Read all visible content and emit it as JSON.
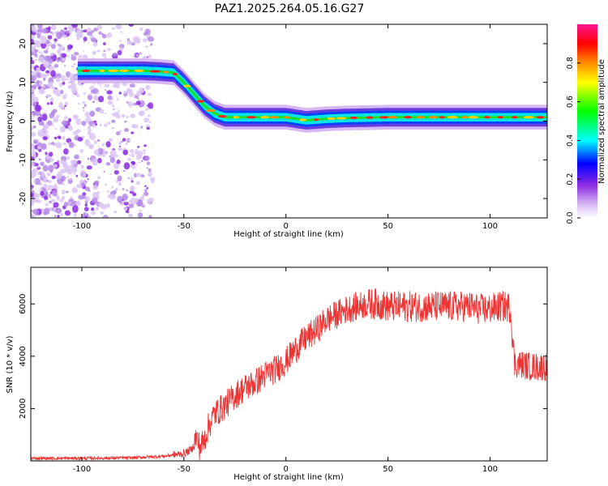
{
  "title": "PAZ1.2025.264.05.16.G27",
  "chart_data": [
    {
      "type": "heatmap",
      "xlabel": "Height of straight line (km)",
      "ylabel": "Frequency (Hz)",
      "xlim": [
        -125,
        128
      ],
      "ylim": [
        -25,
        25
      ],
      "xticks": [
        -100,
        -50,
        0,
        50,
        100
      ],
      "yticks": [
        20,
        10,
        0,
        -10,
        -20
      ],
      "colorbar": {
        "label": "Normalized spectral amplitude",
        "range": [
          0,
          1
        ],
        "ticks": [
          "0.0",
          "0.2",
          "0.4",
          "0.6",
          "0.8"
        ],
        "colors": [
          "#ffffff",
          "#d7b8f3",
          "#8a2be2",
          "#0000ff",
          "#00ffff",
          "#00ff00",
          "#ffff00",
          "#ff8c00",
          "#ff0000",
          "#ff1493"
        ]
      },
      "ridge": {
        "x": [
          -102,
          -90,
          -80,
          -70,
          -62,
          -55,
          -50,
          -45,
          -40,
          -35,
          -30,
          -20,
          -10,
          0,
          10,
          20,
          30,
          40,
          50,
          60,
          70,
          80,
          90,
          100,
          110,
          120,
          128
        ],
        "y": [
          13,
          13,
          13,
          13,
          12.8,
          12.5,
          10,
          7,
          4,
          2,
          1,
          1,
          1,
          1,
          0.2,
          0.6,
          0.8,
          0.9,
          1,
          1,
          1,
          1,
          1,
          1,
          1,
          1,
          1
        ]
      }
    },
    {
      "type": "line",
      "xlabel": "Height of straight line (km)",
      "ylabel": "SNR (10 * v/v)",
      "xlim": [
        -125,
        128
      ],
      "ylim": [
        0,
        7400
      ],
      "xticks": [
        -100,
        -50,
        0,
        50,
        100
      ],
      "yticks": [
        2000,
        4000,
        6000
      ],
      "color": "#ee3333",
      "series": [
        {
          "x": [
            -125,
            -100,
            -75,
            -60,
            -50,
            -46,
            -44,
            -42,
            -40,
            -38,
            -35,
            -30,
            -25,
            -20,
            -15,
            -10,
            -5,
            0,
            5,
            10,
            15,
            20,
            25,
            30,
            35,
            40,
            45,
            50,
            55,
            60,
            65,
            70,
            75,
            80,
            85,
            90,
            95,
            100,
            105,
            108,
            110,
            112,
            115,
            120,
            125,
            128
          ],
          "y": [
            100,
            100,
            120,
            180,
            280,
            450,
            900,
            500,
            800,
            1300,
            1800,
            2100,
            2500,
            2800,
            3000,
            3300,
            3500,
            3800,
            4300,
            4700,
            5000,
            5400,
            5600,
            5800,
            5900,
            6000,
            6000,
            5900,
            5900,
            5900,
            5900,
            5900,
            5900,
            5900,
            5900,
            5900,
            5800,
            5800,
            5900,
            5900,
            5850,
            3700,
            3700,
            3600,
            3600,
            3600
          ]
        }
      ]
    }
  ]
}
